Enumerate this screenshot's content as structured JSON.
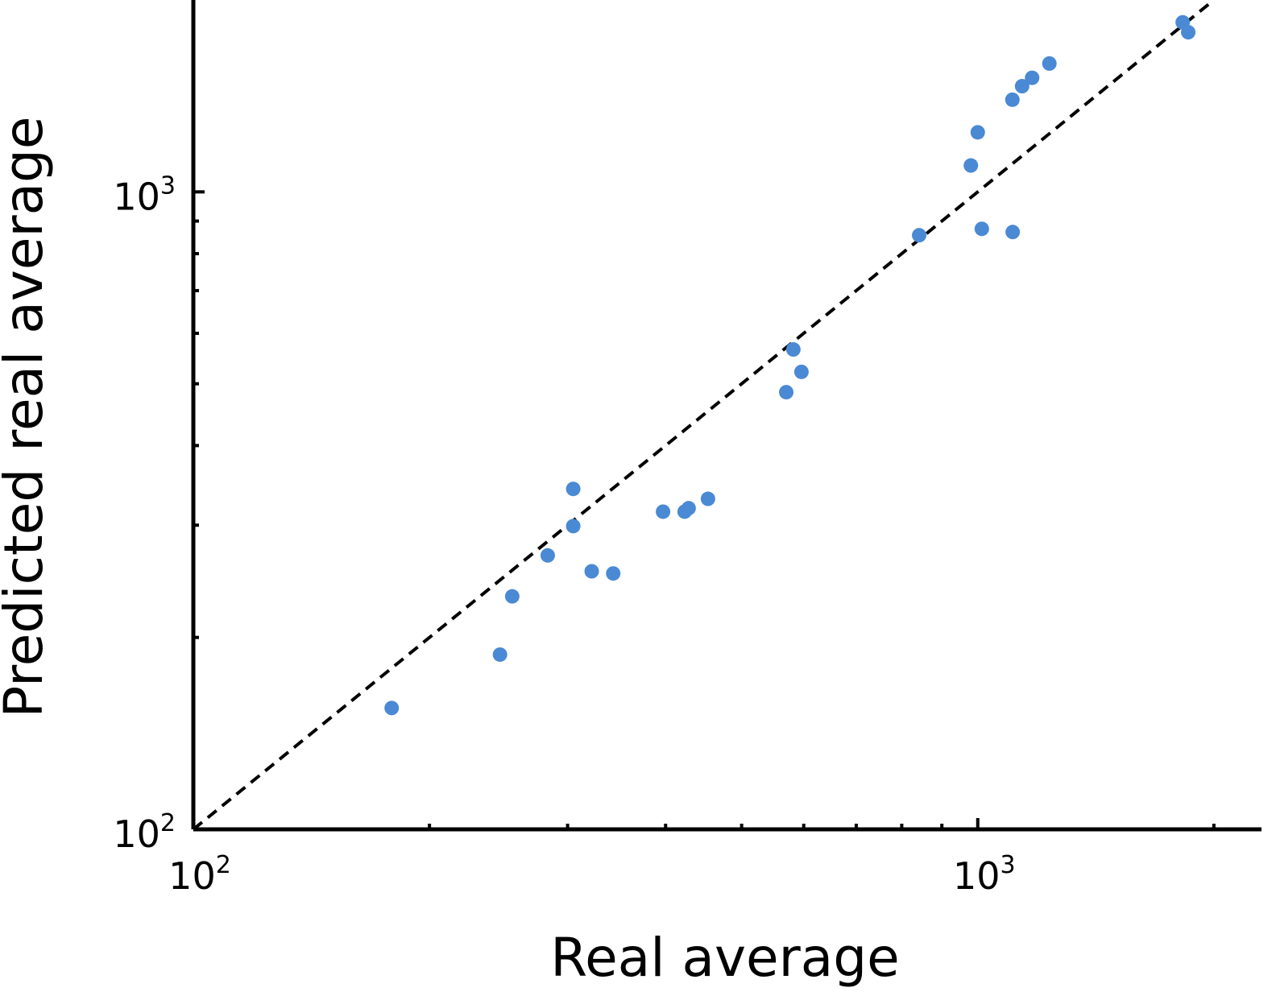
{
  "chart_data": {
    "type": "scatter",
    "title": "",
    "xlabel": "Real average",
    "ylabel": "Predicted real average",
    "xscale": "log",
    "yscale": "log",
    "xlim": [
      100,
      2300
    ],
    "ylim": [
      100,
      2000
    ],
    "x_major_ticks": [
      {
        "base": "10",
        "exp": "2",
        "value": 100
      },
      {
        "base": "10",
        "exp": "3",
        "value": 1000
      }
    ],
    "y_major_ticks": [
      {
        "base": "10",
        "exp": "2",
        "value": 100
      },
      {
        "base": "10",
        "exp": "3",
        "value": 1000
      }
    ],
    "grid": false,
    "reference_line": "y = x",
    "point_color": "#4a89d4",
    "series": [
      {
        "name": "points",
        "x": [
          179,
          246,
          255,
          283,
          305,
          305,
          322,
          343,
          397,
          423,
          428,
          453,
          570,
          582,
          596,
          842,
          980,
          1000,
          1012,
          1107,
          1108,
          1139,
          1173,
          1234,
          1825,
          1855
        ],
        "y": [
          155,
          188,
          232,
          269,
          342,
          299,
          254,
          252,
          315,
          315,
          319,
          330,
          485,
          566,
          522,
          855,
          1100,
          1240,
          875,
          1395,
          865,
          1465,
          1510,
          1590,
          1845,
          1780
        ]
      }
    ]
  }
}
